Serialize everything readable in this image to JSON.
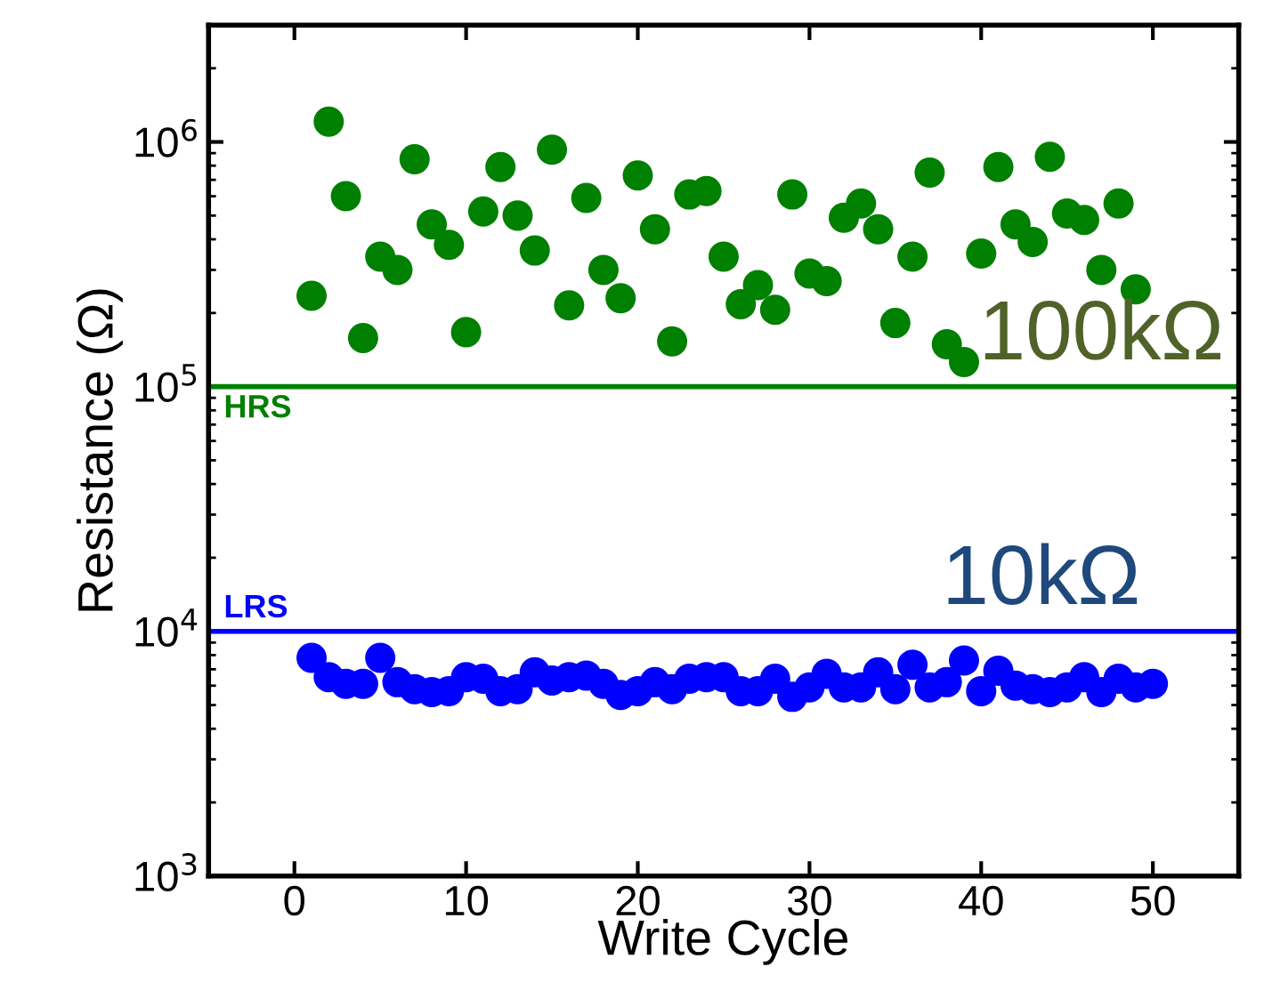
{
  "chart_data": {
    "type": "scatter",
    "xlabel": "Write Cycle",
    "ylabel": "Resistance (Ω)",
    "log": "y",
    "marker": "circle",
    "grid": false,
    "xlim": [
      -5,
      55
    ],
    "xticks": [
      0,
      10,
      20,
      30,
      40,
      50
    ],
    "ylim": [
      1000,
      3000000
    ],
    "yticks": [
      {
        "value": 1000,
        "label": "10$^{3}$"
      },
      {
        "value": 10000,
        "label": "10$^{4}$"
      },
      {
        "value": 100000,
        "label": "10$^{5}$"
      },
      {
        "value": 1000000,
        "label": "10$^{6}$"
      }
    ],
    "series": [
      {
        "color": "#008000",
        "x": [
          1,
          2,
          3,
          4,
          5,
          6,
          7,
          8,
          9,
          10,
          11,
          12,
          13,
          14,
          15,
          16,
          17,
          18,
          19,
          20,
          21,
          22,
          23,
          24,
          25,
          26,
          27,
          28,
          29,
          30,
          31,
          32,
          33,
          34,
          35,
          36,
          37,
          38,
          39,
          40,
          41,
          42,
          43,
          44,
          45,
          46,
          47,
          48,
          49
        ],
        "values": [
          235000,
          1210000,
          600000,
          158000,
          340000,
          300000,
          850000,
          460000,
          380000,
          167000,
          520000,
          790000,
          500000,
          360000,
          930000,
          215000,
          590000,
          300000,
          230000,
          730000,
          440000,
          153000,
          610000,
          630000,
          340000,
          217000,
          260000,
          206000,
          610000,
          290000,
          270000,
          490000,
          560000,
          440000,
          182000,
          340000,
          750000,
          149000,
          126000,
          350000,
          790000,
          460000,
          390000,
          870000,
          510000,
          480000,
          300000,
          560000,
          250000
        ]
      },
      {
        "color": "#0000ff",
        "x": [
          1,
          2,
          3,
          4,
          5,
          6,
          7,
          8,
          9,
          10,
          11,
          12,
          13,
          14,
          15,
          16,
          17,
          18,
          19,
          20,
          21,
          22,
          23,
          24,
          25,
          26,
          27,
          28,
          29,
          30,
          31,
          32,
          33,
          34,
          35,
          36,
          37,
          38,
          39,
          40,
          41,
          42,
          43,
          44,
          45,
          46,
          47,
          48,
          49,
          50
        ],
        "values": [
          7800,
          6500,
          6100,
          6100,
          7800,
          6200,
          5800,
          5650,
          5700,
          6500,
          6400,
          5700,
          5800,
          6800,
          6300,
          6500,
          6600,
          6100,
          5500,
          5700,
          6200,
          5800,
          6400,
          6500,
          6500,
          5700,
          5700,
          6400,
          5400,
          5900,
          6700,
          5900,
          5900,
          6800,
          5800,
          7300,
          5900,
          6200,
          7600,
          5700,
          6900,
          6000,
          5800,
          5650,
          5900,
          6500,
          5650,
          6400,
          5900,
          6100
        ]
      }
    ],
    "ref_lines": [
      {
        "axis": "y",
        "value": 100000,
        "label": "HRS",
        "color": "#008000"
      },
      {
        "axis": "y",
        "value": 10000,
        "label": "LRS",
        "color": "#0000ff"
      }
    ],
    "annotations": [
      {
        "text": "100kΩ",
        "x": 47,
        "y": 100000
      },
      {
        "text": "10kΩ",
        "x": 43.5,
        "y": 10000
      }
    ]
  }
}
